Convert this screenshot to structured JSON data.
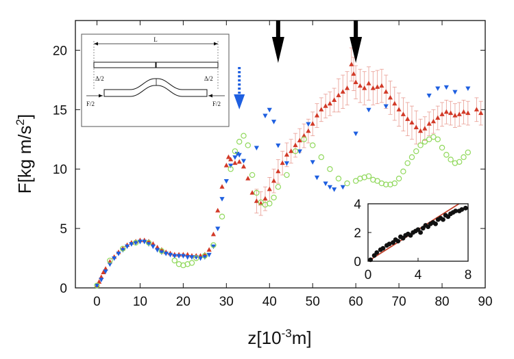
{
  "chart_data": {
    "type": "scatter",
    "xlabel_main": "z[10",
    "xlabel_sup": "-3",
    "xlabel_unit": "m]",
    "ylabel_main": "F[kg m/s",
    "ylabel_sup": "2",
    "ylabel_end": "]",
    "xlim": [
      -5,
      90
    ],
    "ylim": [
      0,
      22.5
    ],
    "xticks": [
      0,
      10,
      20,
      30,
      40,
      50,
      60,
      70,
      80,
      90
    ],
    "yticks": [
      0,
      5,
      10,
      15,
      20
    ],
    "colors": {
      "red": "#d23a28",
      "red_err": "#e89a90",
      "blue": "#1e5fe0",
      "green": "#8fd85a"
    },
    "series": [
      {
        "marker": "triangle-up",
        "color": "#d23a28",
        "points": [
          [
            0,
            0.2
          ],
          [
            0.5,
            0.5
          ],
          [
            1,
            0.9
          ],
          [
            1.5,
            1.3
          ],
          [
            2,
            1.6
          ],
          [
            3,
            2.2
          ],
          [
            4,
            2.6
          ],
          [
            5,
            3.0
          ],
          [
            6,
            3.3
          ],
          [
            7,
            3.6
          ],
          [
            8,
            3.8
          ],
          [
            9,
            3.9
          ],
          [
            10,
            4.0
          ],
          [
            11,
            4.0
          ],
          [
            12,
            3.9
          ],
          [
            13,
            3.7
          ],
          [
            14,
            3.4
          ],
          [
            15,
            3.2
          ],
          [
            16,
            3.0
          ],
          [
            17,
            2.9
          ],
          [
            18,
            2.8
          ],
          [
            19,
            2.8
          ],
          [
            20,
            2.8
          ],
          [
            21,
            2.8
          ],
          [
            22,
            2.7
          ],
          [
            23,
            2.7
          ],
          [
            24,
            2.7
          ],
          [
            25,
            2.8
          ],
          [
            26,
            3.2
          ],
          [
            27,
            4.5
          ],
          [
            28,
            6.5
          ],
          [
            29,
            8.5
          ],
          [
            30,
            10.3
          ],
          [
            30.5,
            11.0
          ],
          [
            31,
            10.8
          ],
          [
            32,
            10.5
          ],
          [
            33,
            10.6
          ],
          [
            34,
            10.2
          ],
          [
            35,
            9.2
          ],
          [
            36,
            8.0
          ],
          [
            37,
            7.3
          ],
          [
            38,
            7.1
          ],
          [
            39,
            7.5
          ],
          [
            40,
            8.3
          ],
          [
            41,
            9.0
          ],
          [
            42,
            9.8
          ],
          [
            43,
            10.5
          ],
          [
            44,
            11.2
          ],
          [
            45,
            11.5
          ],
          [
            46,
            12.0
          ],
          [
            47,
            12.4
          ],
          [
            48,
            12.8
          ],
          [
            49,
            13.2
          ],
          [
            50,
            13.8
          ],
          [
            51,
            14.5
          ],
          [
            52,
            15.0
          ],
          [
            53,
            15.3
          ],
          [
            54,
            15.5
          ],
          [
            55,
            15.8
          ],
          [
            56,
            16.2
          ],
          [
            57,
            16.5
          ],
          [
            58,
            16.8
          ],
          [
            59,
            18.8
          ],
          [
            59.5,
            18.0
          ],
          [
            60,
            17.3
          ],
          [
            61,
            17.0
          ],
          [
            62,
            16.8
          ],
          [
            63,
            17.2
          ],
          [
            64,
            16.8
          ],
          [
            65,
            16.9
          ],
          [
            66,
            17.0
          ],
          [
            67,
            16.5
          ],
          [
            68,
            16.0
          ],
          [
            69,
            15.5
          ],
          [
            70,
            15.0
          ],
          [
            71,
            14.6
          ],
          [
            72,
            14.2
          ],
          [
            73,
            13.9
          ],
          [
            74,
            13.5
          ],
          [
            75,
            13.2
          ],
          [
            76,
            13.4
          ],
          [
            77,
            13.8
          ],
          [
            78,
            14.0
          ],
          [
            79,
            14.3
          ],
          [
            80,
            14.6
          ],
          [
            81,
            14.8
          ],
          [
            82,
            14.7
          ],
          [
            83,
            14.5
          ],
          [
            84,
            14.6
          ],
          [
            85,
            14.8
          ],
          [
            86,
            14.7
          ],
          [
            88,
            15.0
          ],
          [
            89,
            14.7
          ]
        ]
      },
      {
        "marker": "triangle-down",
        "color": "#1e5fe0",
        "points": [
          [
            0,
            0.2
          ],
          [
            1,
            0.7
          ],
          [
            2,
            1.4
          ],
          [
            3,
            2.0
          ],
          [
            4,
            2.5
          ],
          [
            5,
            2.9
          ],
          [
            6,
            3.2
          ],
          [
            7,
            3.5
          ],
          [
            8,
            3.7
          ],
          [
            9,
            3.8
          ],
          [
            10,
            3.9
          ],
          [
            11,
            3.9
          ],
          [
            12,
            3.7
          ],
          [
            13,
            3.5
          ],
          [
            14,
            3.2
          ],
          [
            15,
            3.0
          ],
          [
            16,
            2.9
          ],
          [
            17,
            2.8
          ],
          [
            18,
            2.7
          ],
          [
            19,
            2.7
          ],
          [
            20,
            2.7
          ],
          [
            21,
            2.6
          ],
          [
            22,
            2.6
          ],
          [
            23,
            2.6
          ],
          [
            24,
            2.5
          ],
          [
            25,
            2.6
          ],
          [
            26,
            2.8
          ],
          [
            27,
            3.5
          ],
          [
            28,
            5.0
          ],
          [
            29,
            7.5
          ],
          [
            30,
            9.0
          ],
          [
            31,
            10.3
          ],
          [
            32,
            11.0
          ],
          [
            32.5,
            11.3
          ],
          [
            33,
            11.2
          ],
          [
            34,
            10.7
          ],
          [
            37,
            11.8
          ],
          [
            39,
            14.5
          ],
          [
            40,
            15.0
          ],
          [
            41,
            14.0
          ],
          [
            42,
            12.0
          ],
          [
            44,
            10.5
          ],
          [
            47,
            11.5
          ],
          [
            49,
            13.8
          ],
          [
            50,
            10.6
          ],
          [
            51,
            9.3
          ],
          [
            53,
            8.8
          ],
          [
            54,
            8.5
          ],
          [
            55,
            8.3
          ],
          [
            57,
            8.5
          ],
          [
            60,
            13.0
          ],
          [
            63,
            15.0
          ],
          [
            67,
            15.3
          ],
          [
            77,
            16.2
          ],
          [
            79,
            16.8
          ],
          [
            81,
            16.9
          ],
          [
            83,
            16.5
          ],
          [
            86,
            16.8
          ]
        ]
      },
      {
        "marker": "circle-open",
        "color": "#8fd85a",
        "points": [
          [
            0,
            0.2
          ],
          [
            3,
            2.3
          ],
          [
            6,
            3.3
          ],
          [
            9,
            3.8
          ],
          [
            12,
            3.8
          ],
          [
            15,
            3.1
          ],
          [
            18,
            2.3
          ],
          [
            19,
            2.0
          ],
          [
            20,
            1.9
          ],
          [
            21,
            2.0
          ],
          [
            22,
            2.1
          ],
          [
            23,
            2.5
          ],
          [
            25,
            2.7
          ],
          [
            27,
            3.6
          ],
          [
            29,
            6.0
          ],
          [
            31,
            10.0
          ],
          [
            32,
            11.5
          ],
          [
            33,
            12.3
          ],
          [
            34,
            12.8
          ],
          [
            35,
            12.0
          ],
          [
            36,
            9.5
          ],
          [
            37,
            8.0
          ],
          [
            38,
            7.2
          ],
          [
            39,
            7.0
          ],
          [
            40,
            7.1
          ],
          [
            41,
            7.6
          ],
          [
            42,
            8.5
          ],
          [
            44,
            9.5
          ],
          [
            46,
            11.5
          ],
          [
            48,
            12.5
          ],
          [
            50,
            12.0
          ],
          [
            52,
            11.0
          ],
          [
            54,
            10.0
          ],
          [
            56,
            9.2
          ],
          [
            58,
            8.8
          ],
          [
            60,
            9.0
          ],
          [
            61,
            9.2
          ],
          [
            62,
            9.3
          ],
          [
            63,
            9.4
          ],
          [
            64,
            9.1
          ],
          [
            65,
            9.0
          ],
          [
            66,
            8.8
          ],
          [
            67,
            8.7
          ],
          [
            68,
            8.7
          ],
          [
            69,
            8.8
          ],
          [
            70,
            9.2
          ],
          [
            71,
            9.8
          ],
          [
            72,
            10.5
          ],
          [
            73,
            11.0
          ],
          [
            74,
            11.5
          ],
          [
            75,
            12.0
          ],
          [
            76,
            12.3
          ],
          [
            77,
            12.5
          ],
          [
            78,
            12.7
          ],
          [
            79,
            12.5
          ],
          [
            80,
            11.8
          ],
          [
            81,
            11.2
          ],
          [
            82,
            10.8
          ],
          [
            83,
            10.5
          ],
          [
            84,
            10.6
          ],
          [
            85,
            11.0
          ],
          [
            86,
            11.4
          ]
        ]
      }
    ],
    "arrows_solid_at_x": [
      42,
      60
    ],
    "arrow_dashed_at_x": 33,
    "inset": {
      "xlim": [
        0,
        8
      ],
      "ylim": [
        0,
        4
      ],
      "xticks": [
        0,
        4,
        8
      ],
      "yticks": [
        0,
        2,
        4
      ],
      "fit_slope": 0.55,
      "points": [
        [
          0.2,
          0.1
        ],
        [
          0.5,
          0.4
        ],
        [
          0.7,
          0.6
        ],
        [
          1.0,
          0.8
        ],
        [
          1.2,
          0.9
        ],
        [
          1.5,
          1.1
        ],
        [
          1.7,
          1.2
        ],
        [
          2.0,
          1.3
        ],
        [
          2.2,
          1.5
        ],
        [
          2.4,
          1.4
        ],
        [
          2.6,
          1.7
        ],
        [
          2.8,
          1.6
        ],
        [
          3.0,
          1.8
        ],
        [
          3.2,
          1.9
        ],
        [
          3.4,
          1.8
        ],
        [
          3.6,
          2.0
        ],
        [
          3.8,
          2.1
        ],
        [
          4.0,
          2.2
        ],
        [
          4.2,
          2.0
        ],
        [
          4.4,
          2.3
        ],
        [
          4.6,
          2.5
        ],
        [
          4.8,
          2.4
        ],
        [
          5.0,
          2.6
        ],
        [
          5.2,
          2.7
        ],
        [
          5.4,
          2.6
        ],
        [
          5.6,
          2.9
        ],
        [
          5.8,
          3.0
        ],
        [
          6.0,
          2.9
        ],
        [
          6.2,
          3.2
        ],
        [
          6.4,
          3.1
        ],
        [
          6.6,
          3.3
        ],
        [
          6.8,
          3.4
        ],
        [
          7.0,
          3.5
        ],
        [
          7.3,
          3.5
        ],
        [
          7.5,
          3.6
        ],
        [
          7.8,
          3.7
        ]
      ],
      "fit_color": "#c2412b"
    },
    "schematic": {
      "label_L": "L",
      "label_delta_left": "Δ/2",
      "label_delta_right": "Δ/2",
      "label_force_left": "F/2",
      "label_force_right": "F/2"
    }
  }
}
